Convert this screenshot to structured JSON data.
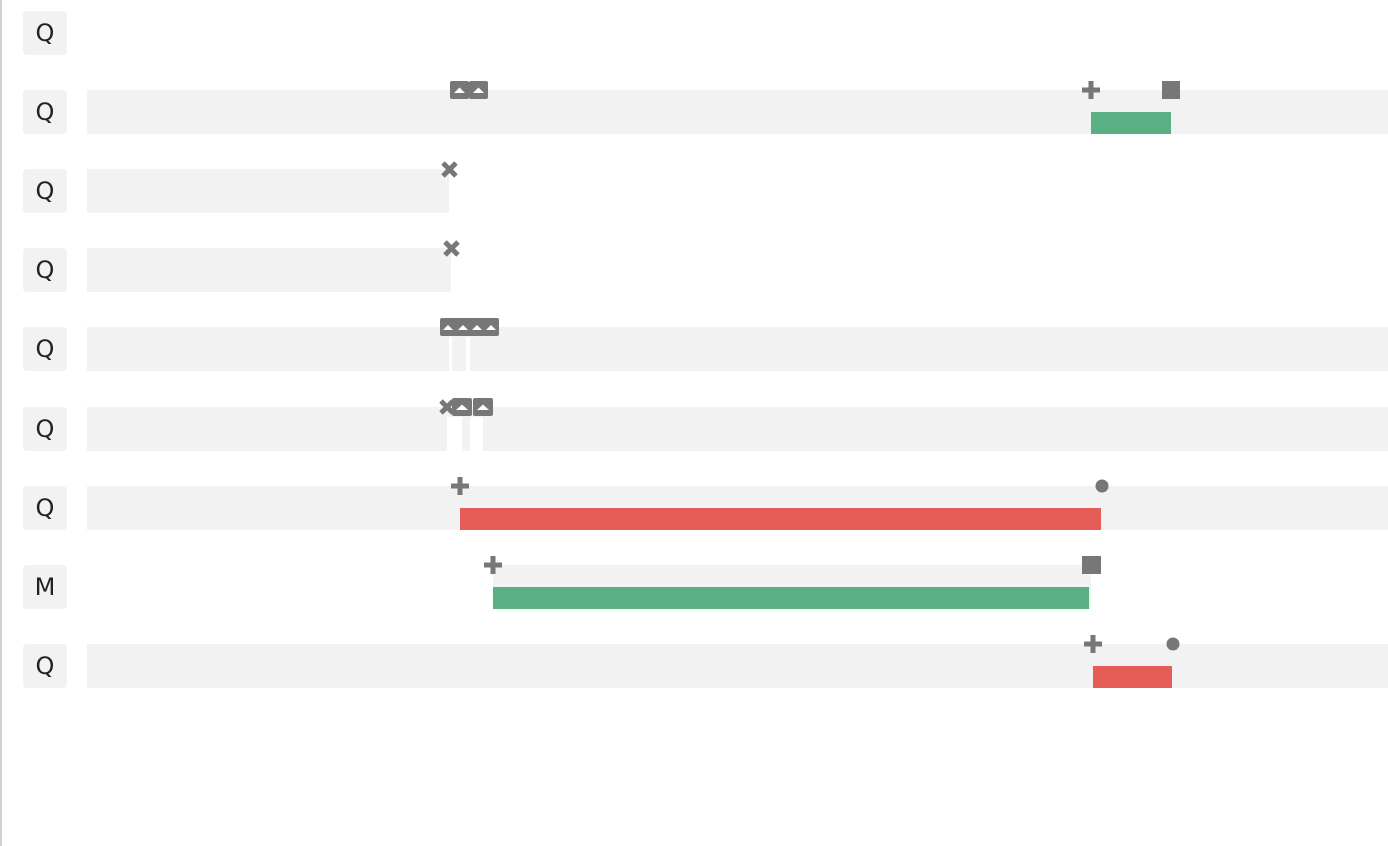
{
  "colors": {
    "track": "#f2f2f2",
    "badge_bg": "#f2f2f2",
    "icon": "#777777",
    "bar_green": "#5aaf83",
    "bar_red": "#e65c57"
  },
  "rows": [
    {
      "badge": "Q",
      "icons": []
    },
    {
      "badge": "Q",
      "icons": [
        "up-chevron-badge-icon",
        "up-chevron-badge-icon",
        "plus-icon",
        "square-icon"
      ],
      "bar_color": "green"
    },
    {
      "badge": "Q",
      "icons": [
        "x-icon"
      ]
    },
    {
      "badge": "Q",
      "icons": [
        "x-icon"
      ]
    },
    {
      "badge": "Q",
      "icons": [
        "up-chevron-badge-icon",
        "up-chevron-badge-icon",
        "up-chevron-badge-icon",
        "up-chevron-badge-icon"
      ]
    },
    {
      "badge": "Q",
      "icons": [
        "x-icon",
        "up-chevron-badge-icon",
        "up-chevron-badge-icon"
      ]
    },
    {
      "badge": "Q",
      "icons": [
        "plus-icon",
        "dot-icon"
      ],
      "bar_color": "red"
    },
    {
      "badge": "M",
      "icons": [
        "plus-icon",
        "square-icon"
      ],
      "bar_color": "green"
    },
    {
      "badge": "Q",
      "icons": [
        "plus-icon",
        "dot-icon"
      ],
      "bar_color": "red"
    }
  ]
}
